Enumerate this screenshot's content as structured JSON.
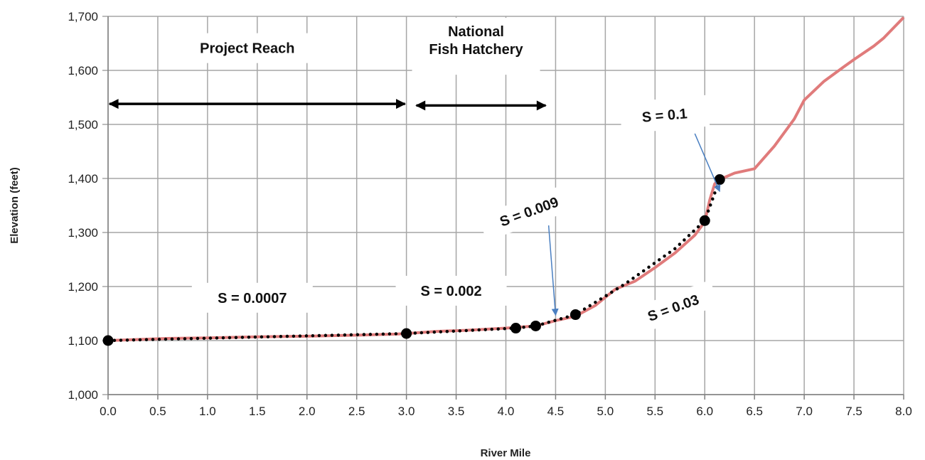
{
  "chart_data": {
    "type": "line",
    "xlabel": "River Mile",
    "ylabel": "Elevation (feet)",
    "xlim": [
      0,
      8
    ],
    "ylim": [
      1000,
      1700
    ],
    "x_ticks": [
      "0.0",
      "0.5",
      "1.0",
      "1.5",
      "2.0",
      "2.5",
      "3.0",
      "3.5",
      "4.0",
      "4.5",
      "5.0",
      "5.5",
      "6.0",
      "6.5",
      "7.0",
      "7.5",
      "8.0"
    ],
    "y_ticks": [
      "1,000",
      "1,100",
      "1,200",
      "1,300",
      "1,400",
      "1,500",
      "1,600",
      "1,700"
    ],
    "grid": true,
    "colors": {
      "profile": "#e07b7b",
      "fit": "#000000",
      "callout_arrow": "#4a7fc1",
      "grid": "#a6a6a6"
    },
    "series": [
      {
        "style": "solid",
        "x": [
          0.0,
          0.3,
          0.6,
          1.0,
          1.5,
          2.0,
          2.5,
          2.9,
          3.0,
          3.3,
          3.6,
          4.0,
          4.3,
          4.5,
          4.7,
          4.9,
          5.1,
          5.3,
          5.5,
          5.7,
          5.9,
          6.0,
          6.05,
          6.1,
          6.15,
          6.3,
          6.5,
          6.7,
          6.9,
          7.0,
          7.2,
          7.4,
          7.5,
          7.7,
          7.8,
          8.0
        ],
        "y": [
          1100,
          1102,
          1104,
          1105,
          1107,
          1108,
          1110,
          1112,
          1113,
          1117,
          1119,
          1123,
          1127,
          1137,
          1145,
          1165,
          1195,
          1210,
          1235,
          1262,
          1295,
          1320,
          1360,
          1390,
          1398,
          1410,
          1418,
          1460,
          1510,
          1545,
          1580,
          1607,
          1620,
          1645,
          1660,
          1698
        ]
      },
      {
        "style": "dotted",
        "x": [
          0.0,
          3.0,
          4.1,
          4.3,
          4.7,
          5.2,
          5.7,
          6.0,
          6.15
        ],
        "y": [
          1100,
          1113,
          1123,
          1127,
          1148,
          1205,
          1270,
          1322,
          1398
        ]
      }
    ],
    "markers": [
      {
        "x": 0.0,
        "y": 1100
      },
      {
        "x": 3.0,
        "y": 1113
      },
      {
        "x": 4.1,
        "y": 1123
      },
      {
        "x": 4.3,
        "y": 1127
      },
      {
        "x": 4.7,
        "y": 1148
      },
      {
        "x": 6.0,
        "y": 1322
      },
      {
        "x": 6.15,
        "y": 1398
      }
    ],
    "annotations": {
      "project_reach": {
        "text": "Project Reach",
        "x": 1.4,
        "y": 1632,
        "arrow_from": 0.0,
        "arrow_to": 3.0,
        "arrow_y": 1538
      },
      "hatchery": {
        "lines": [
          "National",
          "Fish Hatchery"
        ],
        "x": 3.7,
        "y1": 1663,
        "y2": 1630,
        "arrow_from": 3.1,
        "arrow_to": 4.4,
        "arrow_y": 1535
      },
      "slope_0007": {
        "text": "S = 0.0007",
        "x": 1.45,
        "y": 1170
      },
      "slope_002": {
        "text": "S = 0.002",
        "x": 3.45,
        "y": 1183
      },
      "slope_009": {
        "text": "S = 0.009",
        "x": 4.25,
        "y": 1330,
        "rotation": -20,
        "pointer": {
          "x1": 4.43,
          "y1": 1313,
          "x2": 4.5,
          "y2": 1147
        }
      },
      "slope_03": {
        "text": "S = 0.03",
        "x": 5.7,
        "y": 1152,
        "rotation": -20
      },
      "slope_1": {
        "text": "S = 0.1",
        "x": 5.6,
        "y": 1508,
        "rotation": -5,
        "pointer": {
          "x1": 5.9,
          "y1": 1483,
          "x2": 6.15,
          "y2": 1376
        }
      }
    }
  }
}
